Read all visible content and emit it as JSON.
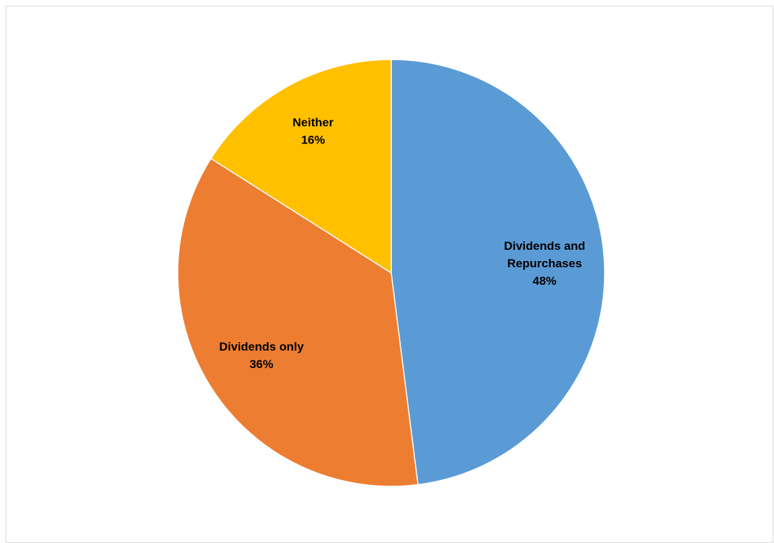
{
  "chart_data": {
    "type": "pie",
    "slices": [
      {
        "label_lines": [
          "Dividends and",
          "Repurchases"
        ],
        "percent_label": "48%",
        "value": 48,
        "color": "#5b9bd5"
      },
      {
        "label_lines": [
          "Dividends only"
        ],
        "percent_label": "36%",
        "value": 36,
        "color": "#ed7d31"
      },
      {
        "label_lines": [
          "Neither"
        ],
        "percent_label": "16%",
        "value": 16,
        "color": "#ffc000"
      }
    ],
    "start_angle_deg": 0,
    "direction": "clockwise",
    "legend": "none"
  }
}
